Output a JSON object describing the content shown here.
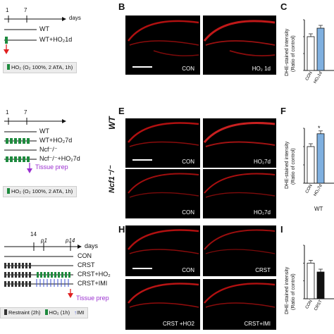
{
  "panels": [
    "B",
    "C",
    "E",
    "F",
    "H",
    "I"
  ],
  "row1": {
    "timeline": {
      "ticks": [
        "1",
        "7"
      ],
      "unit": "days",
      "groups": [
        "WT",
        "WT+HO₂1d"
      ]
    },
    "legend": "HO₂ (O₂ 100%, 2 ATA, 1h)",
    "images": [
      "CON",
      "HO₂ 1d"
    ]
  },
  "row2": {
    "timeline": {
      "ticks": [
        "1",
        "7"
      ],
      "groups": [
        "WT",
        "WT+HO₂7d",
        "Ncf⁻/⁻",
        "Ncf⁻/⁻+HO₂7d"
      ],
      "action": "Tissue prep"
    },
    "legend": "HO₂ (O₂ 100%, 2 ATA, 1h)",
    "row_labels": [
      "WT",
      "Ncf1⁻/⁻"
    ],
    "images": [
      "CON",
      "HO₂7d",
      "CON",
      "HO₂7d"
    ],
    "chart_footer": "WT",
    "significance": "*"
  },
  "row3": {
    "timeline": {
      "ticks": [
        "14",
        "p1",
        "p14"
      ],
      "unit": "days",
      "groups": [
        "CON",
        "CRST",
        "CRST+HO₂",
        "CRST+IMI"
      ],
      "action": "Tissue prep"
    },
    "legend": {
      "restraint": "Restraint (2h)",
      "ho2": "HO₂ (1h)",
      "imi": "IMI"
    },
    "images": [
      "CON",
      "CRST",
      "CRST +HO2",
      "CRST+IMI"
    ]
  },
  "ylabel": "DHE-stained intensity",
  "ylabel2": "(Ratio of control)",
  "colors": {
    "green": "#1e8a3e",
    "red_arrow": "#e02020",
    "purple": "#9b30d0",
    "blue_bar": "#7fb0e0"
  },
  "chart_data": [
    {
      "type": "bar",
      "categories": [
        "CON",
        "HO₂1d"
      ],
      "values": [
        1.0,
        1.25
      ],
      "ylim": [
        0,
        1.5
      ],
      "yticks": [
        "0.0",
        "0.5",
        "1.0",
        "1.5"
      ]
    },
    {
      "type": "bar",
      "categories": [
        "CON",
        "HO₂7d"
      ],
      "values": [
        1.0,
        1.35
      ],
      "ylim": [
        0,
        1.5
      ],
      "yticks": [
        "0.0",
        "0.5",
        "1.0",
        "1.5"
      ]
    },
    {
      "type": "bar",
      "categories": [
        "CON",
        "CRST"
      ],
      "values": [
        1.0,
        0.75
      ],
      "ylim": [
        0,
        1.5
      ],
      "yticks": [
        "0.0",
        "0.5",
        "1.0",
        "1.5"
      ]
    }
  ]
}
